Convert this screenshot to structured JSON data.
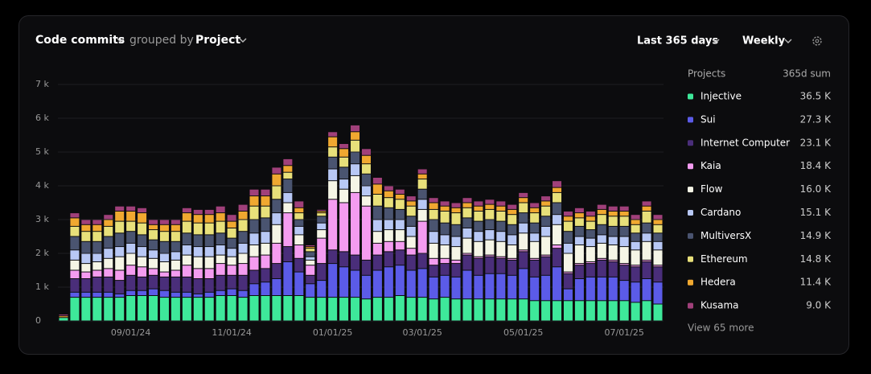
{
  "header": {
    "title": "Code commits",
    "grouped_by": "grouped by",
    "group": "Project",
    "range": "Last 365 days",
    "interval": "Weekly"
  },
  "legend": {
    "title": "Projects",
    "sum_title": "365d sum",
    "more": "View 65 more"
  },
  "chart_data": {
    "type": "stacked_bar",
    "categories": [
      null,
      null,
      null,
      null,
      null,
      null,
      "09/01/24",
      null,
      null,
      null,
      null,
      null,
      null,
      null,
      null,
      "11/01/24",
      null,
      null,
      null,
      null,
      null,
      null,
      null,
      null,
      "01/01/25",
      null,
      null,
      null,
      null,
      null,
      null,
      null,
      "03/01/25",
      null,
      null,
      null,
      null,
      null,
      null,
      null,
      null,
      "05/01/25",
      null,
      null,
      null,
      null,
      null,
      null,
      null,
      null,
      "07/01/25",
      null,
      null,
      null
    ],
    "ylim": [
      0,
      7000
    ],
    "yticks": [
      0,
      {
        "value": 1000,
        "label": "1 k"
      },
      {
        "value": 2000,
        "label": "2 k"
      },
      {
        "value": 3000,
        "label": "3 k"
      },
      {
        "value": 4000,
        "label": "4 k"
      },
      {
        "value": 5000,
        "label": "5 k"
      },
      {
        "value": 6000,
        "label": "6 k"
      },
      {
        "value": 7000,
        "label": "7 k"
      }
    ],
    "grid": true,
    "series": [
      {
        "name": "Injective",
        "color": "#3ee89a",
        "total": "36.5 K",
        "values": [
          100,
          700,
          700,
          700,
          700,
          700,
          750,
          750,
          750,
          700,
          700,
          700,
          700,
          700,
          750,
          750,
          700,
          750,
          750,
          750,
          750,
          750,
          700,
          700,
          700,
          700,
          700,
          650,
          700,
          700,
          750,
          700,
          700,
          650,
          700,
          650,
          650,
          650,
          650,
          650,
          650,
          650,
          600,
          600,
          600,
          600,
          600,
          600,
          600,
          600,
          600,
          550,
          600,
          500
        ]
      },
      {
        "name": "Sui",
        "color": "#5b5be8",
        "total": "27.3 K",
        "values": [
          0,
          150,
          150,
          150,
          150,
          100,
          150,
          150,
          200,
          200,
          150,
          150,
          100,
          150,
          150,
          200,
          200,
          350,
          400,
          500,
          1000,
          700,
          400,
          500,
          1000,
          900,
          800,
          700,
          800,
          900,
          900,
          800,
          850,
          650,
          650,
          650,
          850,
          700,
          750,
          750,
          700,
          900,
          700,
          750,
          1000,
          350,
          650,
          700,
          700,
          700,
          600,
          600,
          650,
          650
        ]
      },
      {
        "name": "Internet Computer",
        "color": "#4a2e7a",
        "total": "23.1 K",
        "values": [
          0,
          400,
          400,
          450,
          450,
          400,
          450,
          400,
          400,
          400,
          450,
          450,
          450,
          400,
          450,
          400,
          450,
          400,
          400,
          450,
          450,
          400,
          250,
          500,
          400,
          450,
          450,
          450,
          450,
          450,
          450,
          450,
          450,
          350,
          350,
          400,
          450,
          500,
          500,
          450,
          450,
          500,
          500,
          550,
          550,
          450,
          400,
          400,
          500,
          450,
          450,
          450,
          500,
          450
        ]
      },
      {
        "name": "Kaia",
        "color": "#f49cf0",
        "total": "18.4 K",
        "values": [
          0,
          250,
          200,
          200,
          250,
          300,
          300,
          300,
          200,
          150,
          200,
          350,
          300,
          300,
          350,
          300,
          350,
          400,
          400,
          600,
          1000,
          400,
          300,
          750,
          1500,
          1450,
          1850,
          1600,
          350,
          300,
          250,
          200,
          950,
          200,
          150,
          100,
          50,
          50,
          50,
          50,
          50,
          50,
          50,
          50,
          100,
          50,
          50,
          50,
          50,
          50,
          50,
          50,
          50,
          50
        ]
      },
      {
        "name": "Flow",
        "color": "#f5f5e6",
        "total": "16.0 K",
        "values": [
          0,
          300,
          250,
          250,
          300,
          400,
          350,
          300,
          300,
          300,
          300,
          300,
          350,
          350,
          250,
          250,
          300,
          350,
          350,
          550,
          300,
          300,
          150,
          250,
          550,
          400,
          500,
          300,
          350,
          350,
          350,
          350,
          350,
          450,
          400,
          400,
          450,
          450,
          450,
          450,
          400,
          500,
          500,
          550,
          600,
          550,
          550,
          450,
          450,
          450,
          500,
          450,
          550,
          450
        ]
      },
      {
        "name": "Cardano",
        "color": "#b8c8f5",
        "total": "15.1 K",
        "values": [
          0,
          300,
          300,
          250,
          300,
          300,
          300,
          300,
          250,
          250,
          250,
          300,
          300,
          300,
          300,
          250,
          300,
          350,
          350,
          350,
          300,
          250,
          100,
          200,
          350,
          300,
          350,
          300,
          350,
          300,
          300,
          300,
          300,
          350,
          300,
          300,
          300,
          300,
          300,
          300,
          300,
          300,
          250,
          300,
          300,
          300,
          250,
          250,
          250,
          250,
          300,
          250,
          250,
          250
        ]
      },
      {
        "name": "MultiversX",
        "color": "#4a5470",
        "total": "14.9 K",
        "values": [
          0,
          400,
          350,
          350,
          350,
          400,
          350,
          350,
          300,
          350,
          300,
          350,
          350,
          350,
          350,
          300,
          350,
          400,
          400,
          400,
          400,
          200,
          150,
          200,
          350,
          350,
          350,
          350,
          400,
          350,
          300,
          300,
          300,
          350,
          350,
          350,
          300,
          300,
          300,
          300,
          300,
          300,
          300,
          300,
          350,
          350,
          300,
          250,
          300,
          300,
          300,
          250,
          300,
          250
        ]
      },
      {
        "name": "Ethereum",
        "color": "#e8e07a",
        "total": "14.8 K",
        "values": [
          0,
          300,
          300,
          300,
          300,
          350,
          300,
          350,
          300,
          300,
          300,
          350,
          350,
          350,
          350,
          300,
          350,
          400,
          350,
          400,
          200,
          200,
          100,
          100,
          300,
          300,
          350,
          300,
          350,
          300,
          300,
          300,
          300,
          300,
          350,
          350,
          300,
          300,
          300,
          300,
          300,
          300,
          300,
          300,
          300,
          300,
          250,
          250,
          300,
          300,
          300,
          250,
          350,
          250
        ]
      },
      {
        "name": "Hedera",
        "color": "#f0a830",
        "total": "11.4 K",
        "values": [
          50,
          250,
          200,
          200,
          200,
          300,
          300,
          300,
          150,
          200,
          200,
          250,
          250,
          250,
          250,
          200,
          250,
          300,
          300,
          350,
          200,
          150,
          50,
          50,
          300,
          250,
          250,
          250,
          300,
          200,
          150,
          150,
          150,
          200,
          150,
          150,
          150,
          150,
          150,
          150,
          150,
          150,
          150,
          150,
          150,
          150,
          150,
          150,
          150,
          150,
          150,
          150,
          150,
          150
        ]
      },
      {
        "name": "Kusama",
        "color": "#a0407a",
        "total": "9.0 K",
        "values": [
          50,
          150,
          150,
          150,
          150,
          150,
          150,
          150,
          150,
          150,
          150,
          150,
          150,
          150,
          200,
          200,
          200,
          200,
          200,
          200,
          200,
          200,
          50,
          50,
          150,
          150,
          200,
          200,
          200,
          150,
          150,
          150,
          150,
          150,
          150,
          150,
          150,
          150,
          150,
          150,
          150,
          150,
          150,
          150,
          200,
          150,
          150,
          150,
          150,
          150,
          150,
          150,
          150,
          150
        ]
      }
    ]
  }
}
